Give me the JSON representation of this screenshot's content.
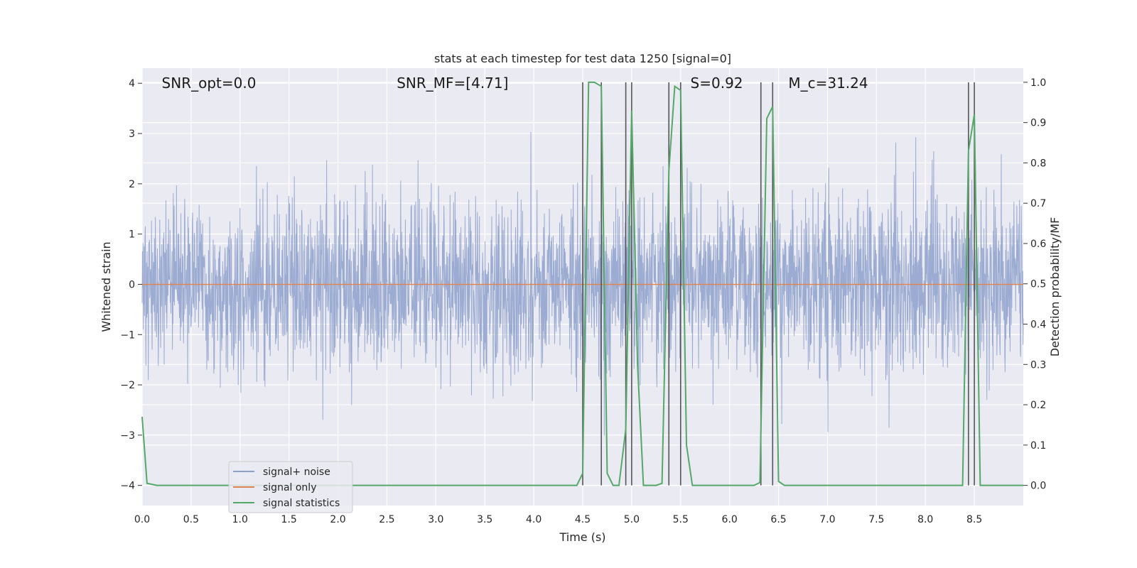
{
  "chart_data": {
    "type": "line",
    "title": "stats at each timestep for test data 1250 [signal=0]",
    "xlabel": "Time (s)",
    "ylabel": "Whitened strain",
    "y2label": "Detection probability/MF",
    "xlim": [
      0,
      9.0
    ],
    "ylim": [
      -4.4,
      4.3
    ],
    "y2lim": [
      -0.05,
      1.035
    ],
    "xticks": [
      0.0,
      0.5,
      1.0,
      1.5,
      2.0,
      2.5,
      3.0,
      3.5,
      4.0,
      4.5,
      5.0,
      5.5,
      6.0,
      6.5,
      7.0,
      7.5,
      8.0,
      8.5
    ],
    "yticks": [
      -4,
      -3,
      -2,
      -1,
      0,
      1,
      2,
      3,
      4
    ],
    "y2ticks": [
      0.0,
      0.1,
      0.2,
      0.3,
      0.4,
      0.5,
      0.6,
      0.7,
      0.8,
      0.9,
      1.0
    ],
    "grid": true,
    "legend_position": "lower-left",
    "annotations": [
      {
        "text": "SNR_opt=0.0",
        "x": 0.2,
        "y": 4.0
      },
      {
        "text": "SNR_MF=[4.71]",
        "x": 2.6,
        "y": 4.0
      },
      {
        "text": "S=0.92",
        "x": 5.6,
        "y": 4.0
      },
      {
        "text": "M_c=31.24",
        "x": 6.6,
        "y": 4.0
      }
    ],
    "vlines": [
      4.5,
      4.69,
      4.94,
      5.0,
      5.38,
      5.5,
      6.32,
      6.44,
      8.44,
      8.5
    ],
    "vline_range": [
      0.0,
      1.0
    ],
    "series": [
      {
        "name": "signal+ noise",
        "color": "#8da0cb",
        "axis": "left",
        "noise_std": 0.85,
        "sample_count": 3000,
        "note_values": "dense noise strain"
      },
      {
        "name": "signal only",
        "color": "#dd8452",
        "axis": "left",
        "x": [
          0.0,
          9.0
        ],
        "values": [
          0.0,
          0.0
        ]
      },
      {
        "name": "signal statistics",
        "color": "#55a868",
        "axis": "right",
        "x": [
          0.0,
          0.05,
          0.15,
          4.44,
          4.5,
          4.56,
          4.62,
          4.69,
          4.75,
          4.81,
          4.87,
          4.94,
          5.0,
          5.06,
          5.12,
          5.19,
          5.25,
          5.31,
          5.38,
          5.44,
          5.5,
          5.56,
          5.62,
          6.25,
          6.31,
          6.38,
          6.44,
          6.5,
          6.56,
          8.38,
          8.44,
          8.5,
          8.56,
          9.0
        ],
        "values": [
          0.17,
          0.005,
          0.0,
          0.0,
          0.03,
          1.0,
          1.0,
          0.99,
          0.03,
          0.0,
          0.0,
          0.14,
          0.93,
          0.3,
          0.0,
          0.0,
          0.0,
          0.005,
          0.78,
          0.99,
          0.98,
          0.1,
          0.0,
          0.0,
          0.007,
          0.91,
          0.94,
          0.01,
          0.0,
          0.0,
          0.83,
          0.92,
          0.0,
          0.0
        ]
      }
    ]
  }
}
